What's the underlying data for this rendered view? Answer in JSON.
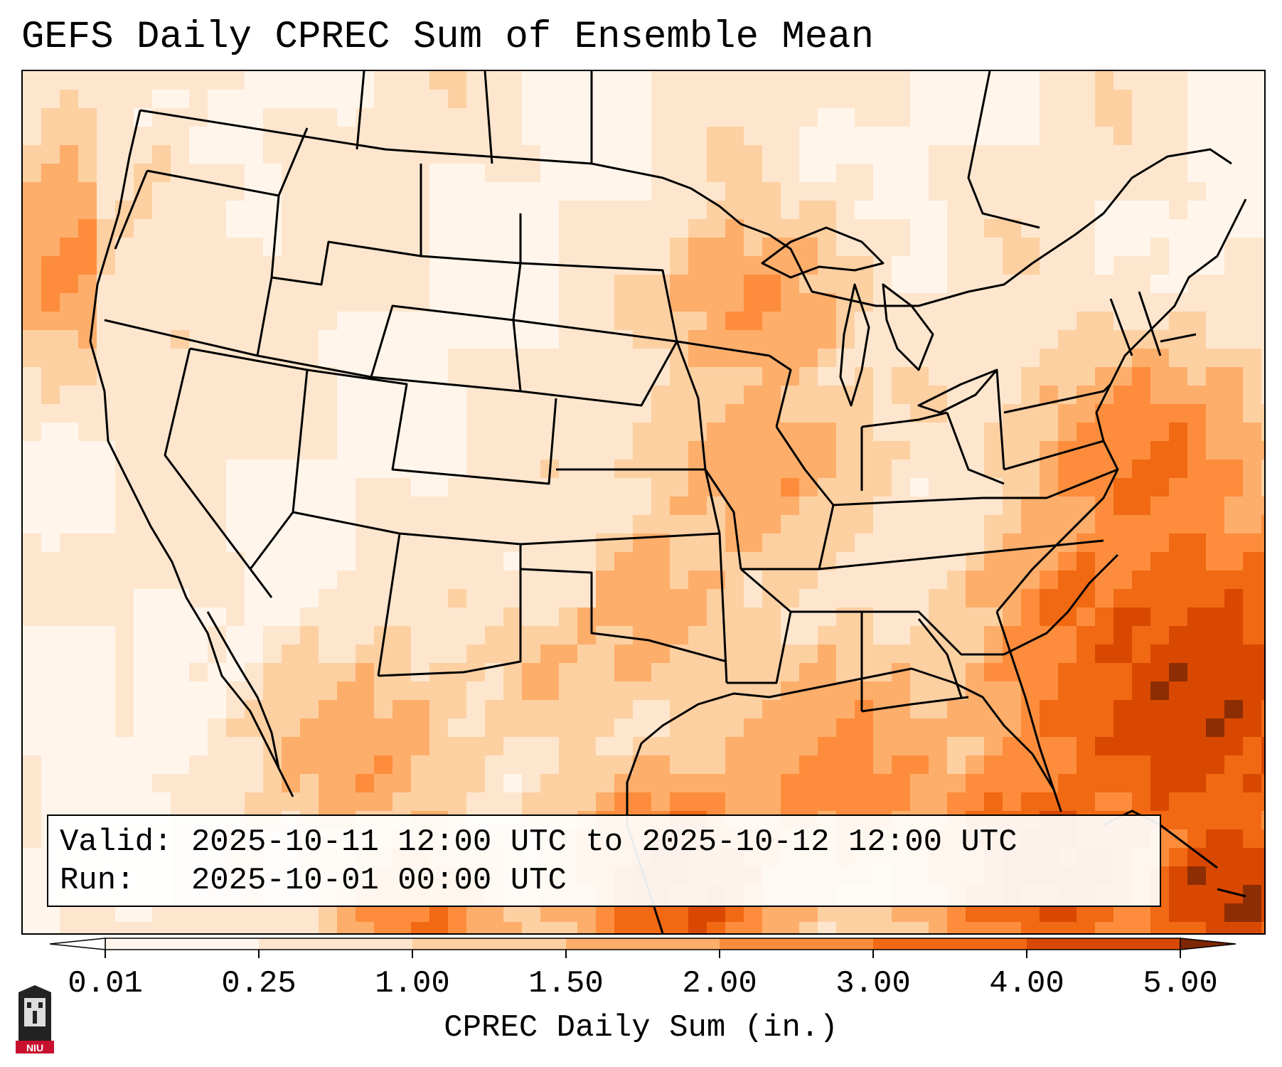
{
  "title": "GEFS Daily CPREC Sum of Ensemble Mean",
  "info": {
    "valid_line": "Valid: 2025-10-11 12:00 UTC to 2025-10-12 12:00 UTC",
    "run_line": "Run:   2025-10-01 00:00 UTC"
  },
  "colorbar": {
    "label": "CPREC Daily Sum (in.)",
    "ticks": [
      "0.01",
      "0.25",
      "1.00",
      "1.50",
      "2.00",
      "3.00",
      "4.00",
      "5.00"
    ],
    "colors": [
      "#fff5eb",
      "#fee6ce",
      "#fdd0a2",
      "#fdae6b",
      "#fd8d3c",
      "#f16913",
      "#d94801",
      "#8c2d04"
    ],
    "under_color": "#ffffff",
    "over_color": "#7f2704"
  },
  "logo": {
    "text": "NIU",
    "brand_color": "#c8102e"
  }
}
